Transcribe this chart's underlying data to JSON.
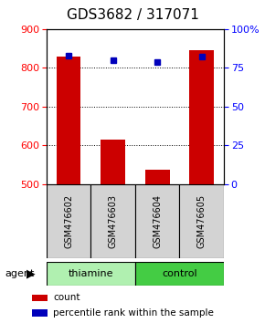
{
  "title": "GDS3682 / 317071",
  "categories": [
    "GSM476602",
    "GSM476603",
    "GSM476604",
    "GSM476605"
  ],
  "bar_values": [
    830,
    615,
    537,
    845
  ],
  "bar_base": 500,
  "percentile_values": [
    83,
    80,
    79,
    82
  ],
  "ylim_left": [
    500,
    900
  ],
  "ylim_right": [
    0,
    100
  ],
  "yticks_left": [
    500,
    600,
    700,
    800,
    900
  ],
  "yticks_right": [
    0,
    25,
    50,
    75,
    100
  ],
  "bar_color": "#cc0000",
  "percentile_color": "#0000bb",
  "bar_width": 0.55,
  "groups": [
    {
      "label": "thiamine",
      "indices": [
        0,
        1
      ],
      "color": "#b0f0b0"
    },
    {
      "label": "control",
      "indices": [
        2,
        3
      ],
      "color": "#44cc44"
    }
  ],
  "legend_items": [
    {
      "label": "count",
      "color": "#cc0000"
    },
    {
      "label": "percentile rank within the sample",
      "color": "#0000bb"
    }
  ],
  "agent_label": "agent",
  "title_fontsize": 11,
  "tick_fontsize": 8,
  "label_fontsize": 8
}
